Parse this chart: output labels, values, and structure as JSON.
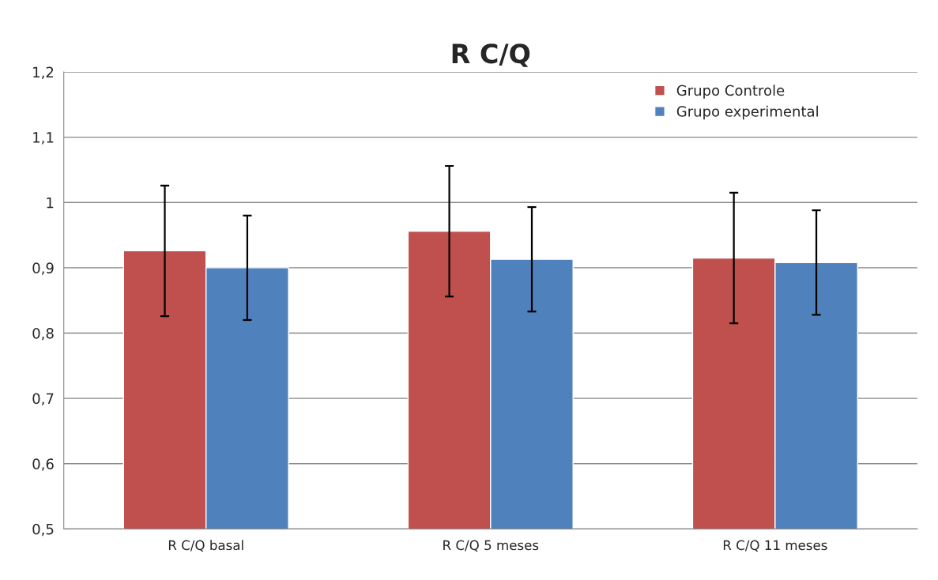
{
  "chart_data": {
    "type": "bar",
    "title": "R C/Q",
    "categories": [
      "R C/Q basal",
      "R C/Q 5 meses",
      "R C/Q 11 meses"
    ],
    "series": [
      {
        "name": "Grupo Controle",
        "color": "#c0504d",
        "values": [
          0.926,
          0.956,
          0.915
        ],
        "errors": [
          0.1,
          0.1,
          0.1
        ]
      },
      {
        "name": "Grupo experimental",
        "color": "#4f81bd",
        "values": [
          0.9,
          0.913,
          0.908
        ],
        "errors": [
          0.08,
          0.08,
          0.08
        ]
      }
    ],
    "ylim": [
      0.5,
      1.2
    ],
    "yticks": [
      {
        "value": 0.5,
        "label": "0,5"
      },
      {
        "value": 0.6,
        "label": "0,6"
      },
      {
        "value": 0.7,
        "label": "0,7"
      },
      {
        "value": 0.8,
        "label": "0,8"
      },
      {
        "value": 0.9,
        "label": "0,9"
      },
      1,
      {
        "value": 1.1,
        "label": "1,1"
      },
      {
        "value": 1.2,
        "label": "1,2"
      }
    ],
    "grid": "y",
    "legend": "top right"
  }
}
